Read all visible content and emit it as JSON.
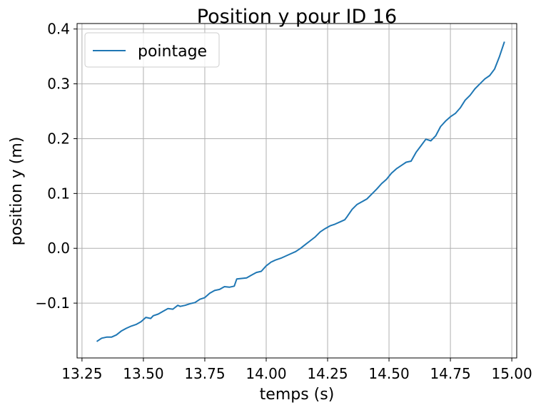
{
  "chart_data": {
    "type": "line",
    "title": "Position y pour ID 16",
    "xlabel": "temps (s)",
    "ylabel": "position y (m)",
    "xlim": [
      13.23,
      15.02
    ],
    "ylim": [
      -0.2,
      0.41
    ],
    "x_ticks": [
      13.25,
      13.5,
      13.75,
      14.0,
      14.25,
      14.5,
      14.75,
      15.0
    ],
    "x_tick_labels": [
      "13.25",
      "13.50",
      "13.75",
      "14.00",
      "14.25",
      "14.50",
      "14.75",
      "15.00"
    ],
    "y_ticks": [
      -0.1,
      0.0,
      0.1,
      0.2,
      0.3,
      0.4
    ],
    "y_tick_labels": [
      "−0.1",
      "0.0",
      "0.1",
      "0.2",
      "0.3",
      "0.4"
    ],
    "grid": true,
    "legend_position": "top-left",
    "colors": {
      "series": "#1f77b4",
      "grid": "#b0b0b0",
      "axis": "#000000"
    },
    "series": [
      {
        "name": "pointage",
        "x": [
          13.31,
          13.33,
          13.35,
          13.37,
          13.39,
          13.41,
          13.43,
          13.45,
          13.47,
          13.49,
          13.51,
          13.53,
          13.54,
          13.56,
          13.58,
          13.6,
          13.62,
          13.64,
          13.65,
          13.67,
          13.69,
          13.71,
          13.73,
          13.75,
          13.77,
          13.79,
          13.81,
          13.83,
          13.85,
          13.87,
          13.88,
          13.9,
          13.92,
          13.94,
          13.96,
          13.98,
          14.0,
          14.02,
          14.04,
          14.06,
          14.08,
          14.1,
          14.12,
          14.14,
          14.16,
          14.18,
          14.2,
          14.22,
          14.24,
          14.26,
          14.28,
          14.3,
          14.32,
          14.33,
          14.35,
          14.37,
          14.39,
          14.41,
          14.43,
          14.45,
          14.47,
          14.49,
          14.51,
          14.53,
          14.55,
          14.57,
          14.59,
          14.61,
          14.63,
          14.65,
          14.67,
          14.69,
          14.71,
          14.73,
          14.75,
          14.77,
          14.79,
          14.81,
          14.83,
          14.85,
          14.87,
          14.89,
          14.91,
          14.93,
          14.95,
          14.97
        ],
        "y": [
          -0.17,
          -0.164,
          -0.162,
          -0.162,
          -0.158,
          -0.151,
          -0.146,
          -0.142,
          -0.139,
          -0.134,
          -0.126,
          -0.128,
          -0.123,
          -0.12,
          -0.115,
          -0.11,
          -0.111,
          -0.104,
          -0.106,
          -0.104,
          -0.101,
          -0.099,
          -0.093,
          -0.09,
          -0.082,
          -0.077,
          -0.075,
          -0.07,
          -0.071,
          -0.069,
          -0.056,
          -0.055,
          -0.054,
          -0.049,
          -0.044,
          -0.042,
          -0.032,
          -0.025,
          -0.021,
          -0.018,
          -0.014,
          -0.01,
          -0.006,
          0.0,
          0.007,
          0.014,
          0.021,
          0.03,
          0.036,
          0.041,
          0.044,
          0.048,
          0.052,
          0.058,
          0.071,
          0.08,
          0.085,
          0.09,
          0.099,
          0.108,
          0.118,
          0.126,
          0.137,
          0.145,
          0.151,
          0.157,
          0.159,
          0.175,
          0.187,
          0.199,
          0.196,
          0.205,
          0.222,
          0.232,
          0.24,
          0.246,
          0.256,
          0.27,
          0.279,
          0.291,
          0.3,
          0.309,
          0.315,
          0.327,
          0.35,
          0.377
        ]
      }
    ]
  }
}
